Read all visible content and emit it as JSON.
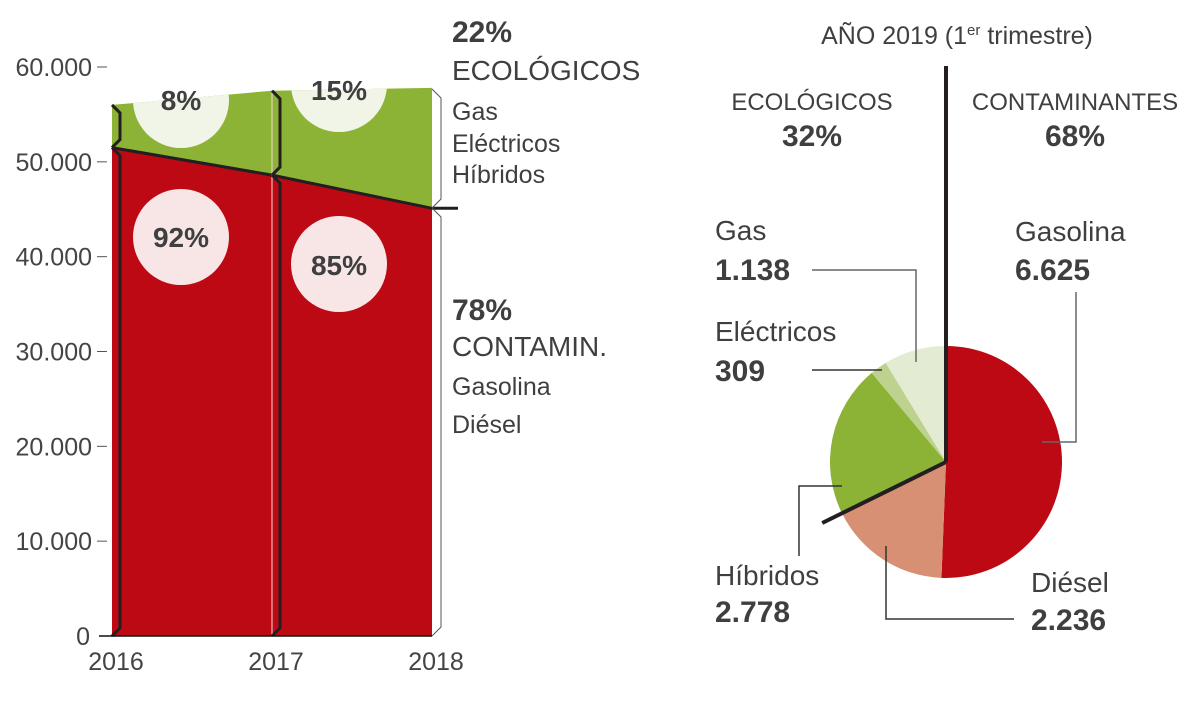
{
  "chart_data": [
    {
      "type": "area",
      "title": "",
      "xlabel": "",
      "ylabel": "",
      "x": [
        "2016",
        "2017",
        "2018"
      ],
      "ylim": [
        0,
        60000
      ],
      "yticks": [
        0,
        10000,
        20000,
        30000,
        40000,
        50000,
        60000
      ],
      "ytick_labels": [
        "0",
        "10.000",
        "20.000",
        "30.000",
        "40.000",
        "50.000",
        "60.000"
      ],
      "stacked": true,
      "series": [
        {
          "name": "Contaminantes (Gasolina, Diésel)",
          "color": "#bd0914",
          "values": [
            51500,
            48600,
            45100
          ]
        },
        {
          "name": "Ecológicos (Gas, Eléctricos, Híbridos)",
          "color": "#8db336",
          "values": [
            4500,
            8900,
            12700
          ]
        }
      ],
      "badges": [
        {
          "year": "2016",
          "series": "ecologicos",
          "text": "8%"
        },
        {
          "year": "2016",
          "series": "contaminantes",
          "text": "92%"
        },
        {
          "year": "2017",
          "series": "ecologicos",
          "text": "15%"
        },
        {
          "year": "2017",
          "series": "contaminantes",
          "text": "85%"
        }
      ],
      "legend": {
        "ecologicos": {
          "pct": "22%",
          "title": "ECOLÓGICOS",
          "items": [
            "Gas",
            "Eléctricos",
            "Híbridos"
          ]
        },
        "contaminantes": {
          "pct": "78%",
          "title": "CONTAMIN.",
          "items": [
            "Gasolina",
            "Diésel"
          ]
        }
      },
      "legend_position": "right"
    },
    {
      "type": "pie",
      "title": "AÑO 2019 (1er trimestre)",
      "title_main": "AÑO 2019 (1",
      "title_sup": "er",
      "title_end": " trimestre)",
      "groups": [
        {
          "name": "ECOLÓGICOS",
          "pct": "32%"
        },
        {
          "name": "CONTAMINANTES",
          "pct": "68%"
        }
      ],
      "slices": [
        {
          "label": "Gasolina",
          "value": 6625,
          "value_label": "6.625",
          "color": "#bd0914"
        },
        {
          "label": "Diésel",
          "value": 2236,
          "value_label": "2.236",
          "color": "#d79073"
        },
        {
          "label": "Híbridos",
          "value": 2778,
          "value_label": "2.778",
          "color": "#8db336"
        },
        {
          "label": "Eléctricos",
          "value": 309,
          "value_label": "309",
          "color": "#bdd28e"
        },
        {
          "label": "Gas",
          "value": 1138,
          "value_label": "1.138",
          "color": "#e3ecd3"
        }
      ]
    }
  ]
}
